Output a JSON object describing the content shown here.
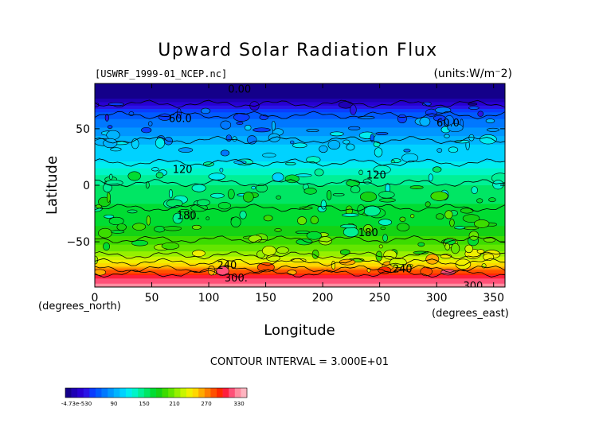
{
  "chart_data": {
    "type": "heatmap",
    "title": "Upward Solar Radiation Flux",
    "subtitle_left": "[USWRF_1999-01_NCEP.nc]",
    "subtitle_right": "(units:W/m⁻2)",
    "xlabel": "Longitude",
    "ylabel": "Latitude",
    "x_unit_label": "(degrees_east)",
    "y_unit_label": "(degrees_north)",
    "xlim": [
      0,
      360
    ],
    "ylim": [
      -90,
      90
    ],
    "x_ticks": [
      0,
      50,
      100,
      150,
      200,
      250,
      300,
      350
    ],
    "x_tick_labels": [
      "0",
      "50",
      "100",
      "150",
      "200",
      "250",
      "300",
      "350"
    ],
    "y_ticks": [
      50,
      0,
      -50
    ],
    "y_tick_labels": [
      "50",
      "0",
      "−50"
    ],
    "contour_interval_text": "CONTOUR INTERVAL = 3.000E+01",
    "contour_labels": [
      {
        "text": "0.00",
        "lon": 127,
        "lat": 82
      },
      {
        "text": "60.0",
        "lon": 75,
        "lat": 56
      },
      {
        "text": "60.0",
        "lon": 310,
        "lat": 52
      },
      {
        "text": "120",
        "lon": 77,
        "lat": 11
      },
      {
        "text": "120",
        "lon": 247,
        "lat": 6
      },
      {
        "text": "180.",
        "lon": 82,
        "lat": -30
      },
      {
        "text": "180",
        "lon": 240,
        "lat": -45
      },
      {
        "text": "240",
        "lon": 116,
        "lat": -74
      },
      {
        "text": "240",
        "lon": 270,
        "lat": -77
      },
      {
        "text": "300.",
        "lon": 124,
        "lat": -85
      },
      {
        "text": "300",
        "lon": 332,
        "lat": -92
      }
    ],
    "zonal_profile": [
      {
        "lat": 90,
        "value": 0
      },
      {
        "lat": 80,
        "value": 0
      },
      {
        "lat": 72,
        "value": 30
      },
      {
        "lat": 65,
        "value": 55
      },
      {
        "lat": 55,
        "value": 75
      },
      {
        "lat": 45,
        "value": 90
      },
      {
        "lat": 35,
        "value": 105
      },
      {
        "lat": 25,
        "value": 110
      },
      {
        "lat": 15,
        "value": 125
      },
      {
        "lat": 5,
        "value": 145
      },
      {
        "lat": -5,
        "value": 155
      },
      {
        "lat": -15,
        "value": 160
      },
      {
        "lat": -25,
        "value": 165
      },
      {
        "lat": -35,
        "value": 170
      },
      {
        "lat": -45,
        "value": 185
      },
      {
        "lat": -55,
        "value": 200
      },
      {
        "lat": -62,
        "value": 215
      },
      {
        "lat": -68,
        "value": 235
      },
      {
        "lat": -73,
        "value": 260
      },
      {
        "lat": -78,
        "value": 290
      },
      {
        "lat": -84,
        "value": 315
      },
      {
        "lat": -90,
        "value": 330
      }
    ],
    "colorbar": {
      "tick_labels": [
        "-4.73e-530",
        "90",
        "150",
        "210",
        "270",
        "330"
      ],
      "colors": [
        "#14008a",
        "#1e00b4",
        "#2800d2",
        "#2a14e6",
        "#0a3cff",
        "#005aff",
        "#0078ff",
        "#0096ff",
        "#00b4ff",
        "#00d2ff",
        "#00ecf0",
        "#00f5c8",
        "#00f096",
        "#00e664",
        "#00dc32",
        "#14d214",
        "#3cdc00",
        "#64e600",
        "#96f000",
        "#c8f500",
        "#f0f000",
        "#ffd700",
        "#ffaa00",
        "#ff7d00",
        "#ff5000",
        "#ff2800",
        "#ff1e3c",
        "#ff5078",
        "#ff8ca0",
        "#ffb4c0"
      ]
    }
  }
}
